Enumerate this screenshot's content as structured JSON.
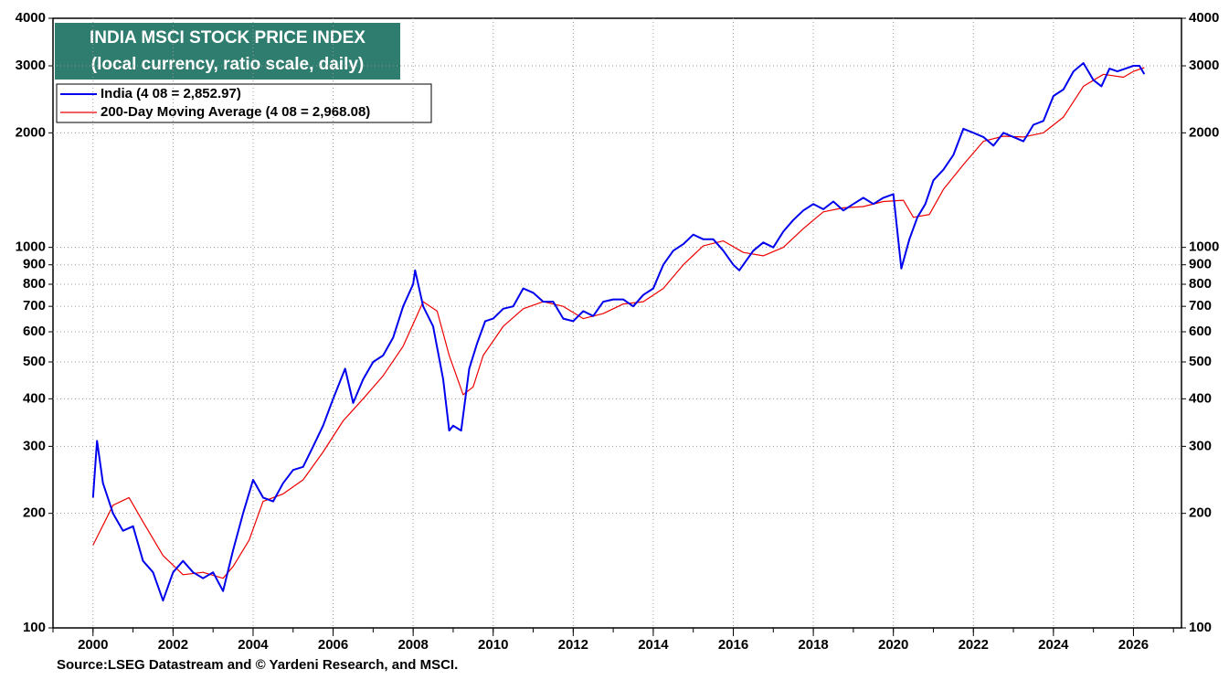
{
  "chart_data": {
    "type": "line",
    "title": "INDIA MSCI STOCK PRICE INDEX",
    "subtitle": "(local currency, ratio scale, daily)",
    "source": "Source:LSEG Datastream and © Yardeni Research, and MSCI.",
    "log_scale": true,
    "grid": true,
    "legend": "upper left",
    "xlim": [
      1999,
      2027.2
    ],
    "xticks": [
      2000,
      2002,
      2004,
      2006,
      2008,
      2010,
      2012,
      2014,
      2016,
      2018,
      2020,
      2022,
      2024,
      2026
    ],
    "xminorticks": [
      1999,
      2000,
      2001,
      2002,
      2003,
      2004,
      2005,
      2006,
      2007,
      2008,
      2009,
      2010,
      2011,
      2012,
      2013,
      2014,
      2015,
      2016,
      2017,
      2018,
      2019,
      2020,
      2021,
      2022,
      2023,
      2024,
      2025,
      2026,
      2027
    ],
    "ylim": [
      100,
      4000
    ],
    "yticks": [
      100,
      200,
      300,
      400,
      500,
      600,
      700,
      800,
      900,
      1000,
      2000,
      3000,
      4000
    ],
    "series": [
      {
        "name": "India (4 08 = 2,852.97)",
        "color": "#0000ee",
        "x": [
          2000.0,
          2000.1,
          2000.25,
          2000.5,
          2000.75,
          2001.0,
          2001.25,
          2001.5,
          2001.75,
          2002.0,
          2002.25,
          2002.5,
          2002.75,
          2003.0,
          2003.25,
          2003.5,
          2003.75,
          2004.0,
          2004.25,
          2004.5,
          2004.75,
          2005.0,
          2005.25,
          2005.5,
          2005.75,
          2006.0,
          2006.3,
          2006.5,
          2006.75,
          2007.0,
          2007.25,
          2007.5,
          2007.75,
          2008.0,
          2008.05,
          2008.25,
          2008.5,
          2008.75,
          2008.9,
          2009.0,
          2009.2,
          2009.4,
          2009.6,
          2009.8,
          2010.0,
          2010.25,
          2010.5,
          2010.75,
          2011.0,
          2011.25,
          2011.5,
          2011.75,
          2012.0,
          2012.25,
          2012.5,
          2012.75,
          2013.0,
          2013.25,
          2013.5,
          2013.75,
          2014.0,
          2014.25,
          2014.5,
          2014.75,
          2015.0,
          2015.25,
          2015.5,
          2015.75,
          2016.0,
          2016.15,
          2016.5,
          2016.75,
          2017.0,
          2017.25,
          2017.5,
          2017.75,
          2018.0,
          2018.25,
          2018.5,
          2018.75,
          2019.0,
          2019.25,
          2019.5,
          2019.75,
          2020.0,
          2020.2,
          2020.4,
          2020.6,
          2020.8,
          2021.0,
          2021.25,
          2021.5,
          2021.75,
          2022.0,
          2022.25,
          2022.5,
          2022.75,
          2023.0,
          2023.25,
          2023.5,
          2023.75,
          2024.0,
          2024.25,
          2024.5,
          2024.75,
          2025.0,
          2025.2,
          2025.4,
          2025.6,
          2025.8,
          2026.0,
          2026.15,
          2026.27
        ],
        "values": [
          220,
          310,
          240,
          200,
          180,
          185,
          150,
          140,
          118,
          140,
          150,
          140,
          135,
          140,
          125,
          160,
          200,
          245,
          220,
          215,
          240,
          260,
          265,
          300,
          340,
          400,
          480,
          390,
          450,
          500,
          520,
          580,
          700,
          800,
          870,
          700,
          620,
          450,
          330,
          340,
          330,
          480,
          560,
          640,
          650,
          690,
          700,
          780,
          760,
          720,
          720,
          650,
          640,
          680,
          660,
          720,
          730,
          730,
          700,
          750,
          780,
          900,
          980,
          1020,
          1080,
          1050,
          1050,
          980,
          900,
          870,
          980,
          1030,
          1000,
          1100,
          1180,
          1250,
          1300,
          1260,
          1320,
          1250,
          1300,
          1350,
          1300,
          1350,
          1380,
          880,
          1050,
          1200,
          1300,
          1500,
          1600,
          1750,
          2050,
          2000,
          1950,
          1850,
          2000,
          1950,
          1900,
          2100,
          2150,
          2500,
          2600,
          2900,
          3050,
          2750,
          2650,
          2950,
          2900,
          2950,
          3000,
          3000,
          2852.97
        ]
      },
      {
        "name": "200-Day Moving Average (4 08 = 2,968.08)",
        "color": "#ee0000",
        "x": [
          2000.0,
          2000.5,
          2000.9,
          2001.25,
          2001.75,
          2002.25,
          2002.75,
          2003.25,
          2003.5,
          2003.9,
          2004.25,
          2004.75,
          2005.25,
          2005.75,
          2006.25,
          2006.75,
          2007.25,
          2007.75,
          2008.25,
          2008.6,
          2008.9,
          2009.25,
          2009.5,
          2009.75,
          2010.25,
          2010.75,
          2011.25,
          2011.75,
          2012.25,
          2012.75,
          2013.25,
          2013.75,
          2014.25,
          2014.75,
          2015.25,
          2015.75,
          2016.25,
          2016.75,
          2017.25,
          2017.75,
          2018.25,
          2018.75,
          2019.25,
          2019.75,
          2020.25,
          2020.5,
          2020.9,
          2021.25,
          2021.75,
          2022.25,
          2022.75,
          2023.25,
          2023.75,
          2024.25,
          2024.75,
          2025.25,
          2025.75,
          2026.0,
          2026.27
        ],
        "values": [
          165,
          210,
          220,
          190,
          155,
          138,
          140,
          135,
          145,
          170,
          215,
          225,
          245,
          290,
          350,
          400,
          460,
          550,
          720,
          680,
          520,
          410,
          430,
          520,
          620,
          690,
          720,
          700,
          650,
          670,
          710,
          720,
          780,
          900,
          1010,
          1040,
          970,
          950,
          1000,
          1120,
          1240,
          1270,
          1280,
          1320,
          1330,
          1200,
          1220,
          1420,
          1650,
          1900,
          1960,
          1950,
          2000,
          2200,
          2650,
          2850,
          2800,
          2900,
          2968.08
        ]
      }
    ]
  }
}
